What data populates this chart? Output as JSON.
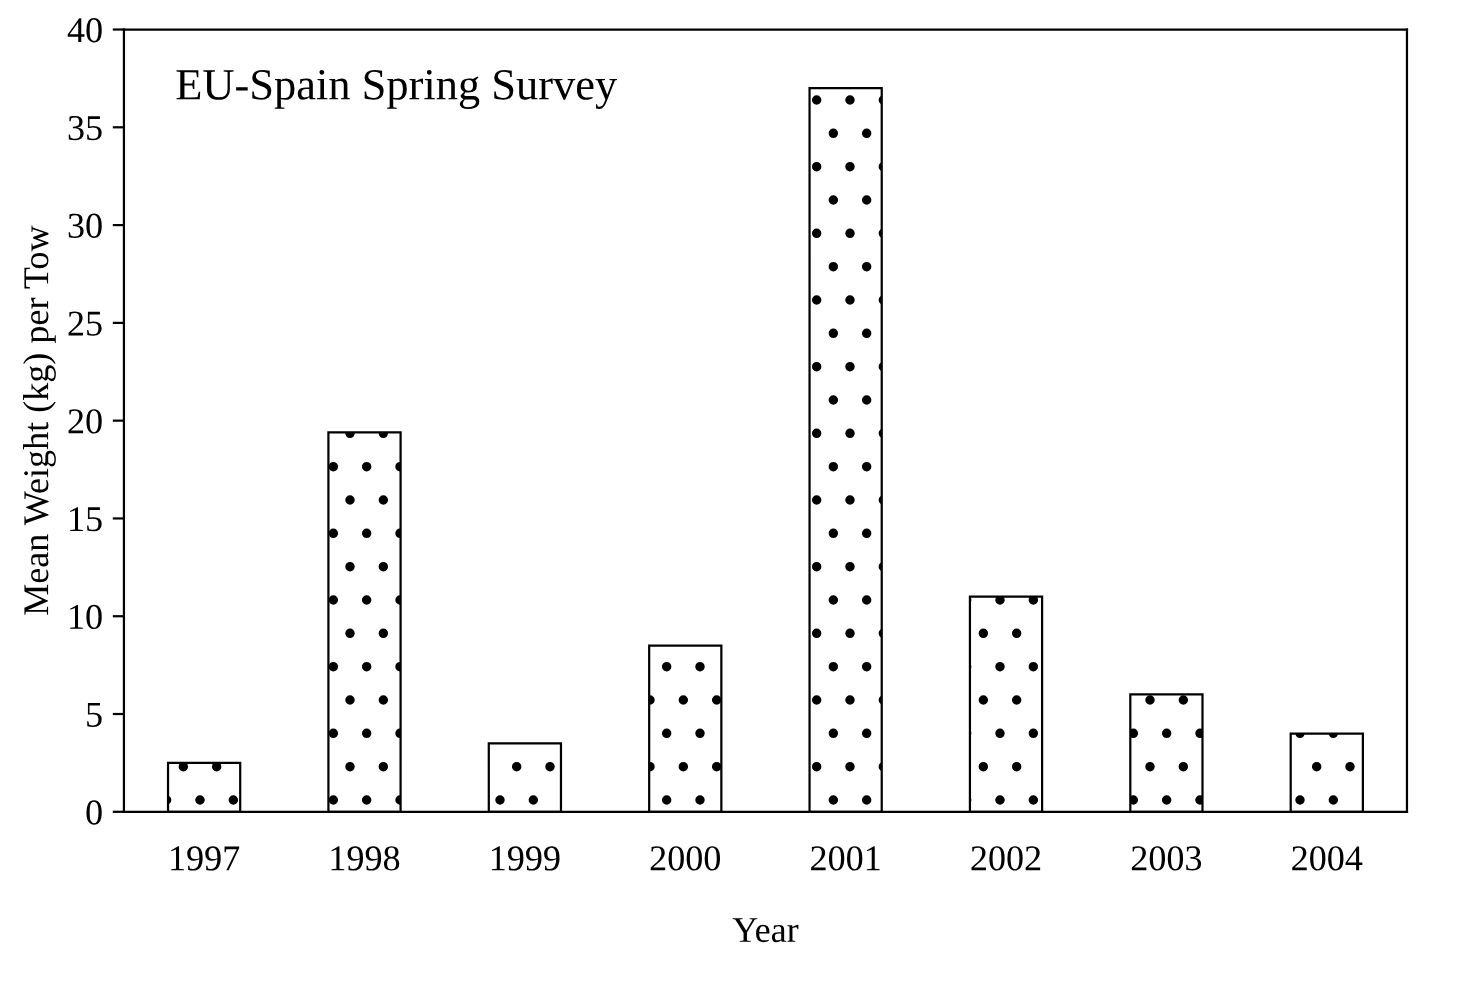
{
  "chart_data": {
    "type": "bar",
    "title": "EU-Spain Spring Survey",
    "xlabel": "Year",
    "ylabel": "Mean Weight (kg) per Tow",
    "categories": [
      "1997",
      "1998",
      "1999",
      "2000",
      "2001",
      "2002",
      "2003",
      "2004"
    ],
    "values": [
      2.5,
      19.4,
      3.5,
      8.5,
      37,
      11,
      6,
      4
    ],
    "ylim": [
      0,
      40
    ],
    "yticks": [
      0,
      5,
      10,
      15,
      20,
      25,
      30,
      35,
      40
    ],
    "grid": false,
    "legend": false
  }
}
